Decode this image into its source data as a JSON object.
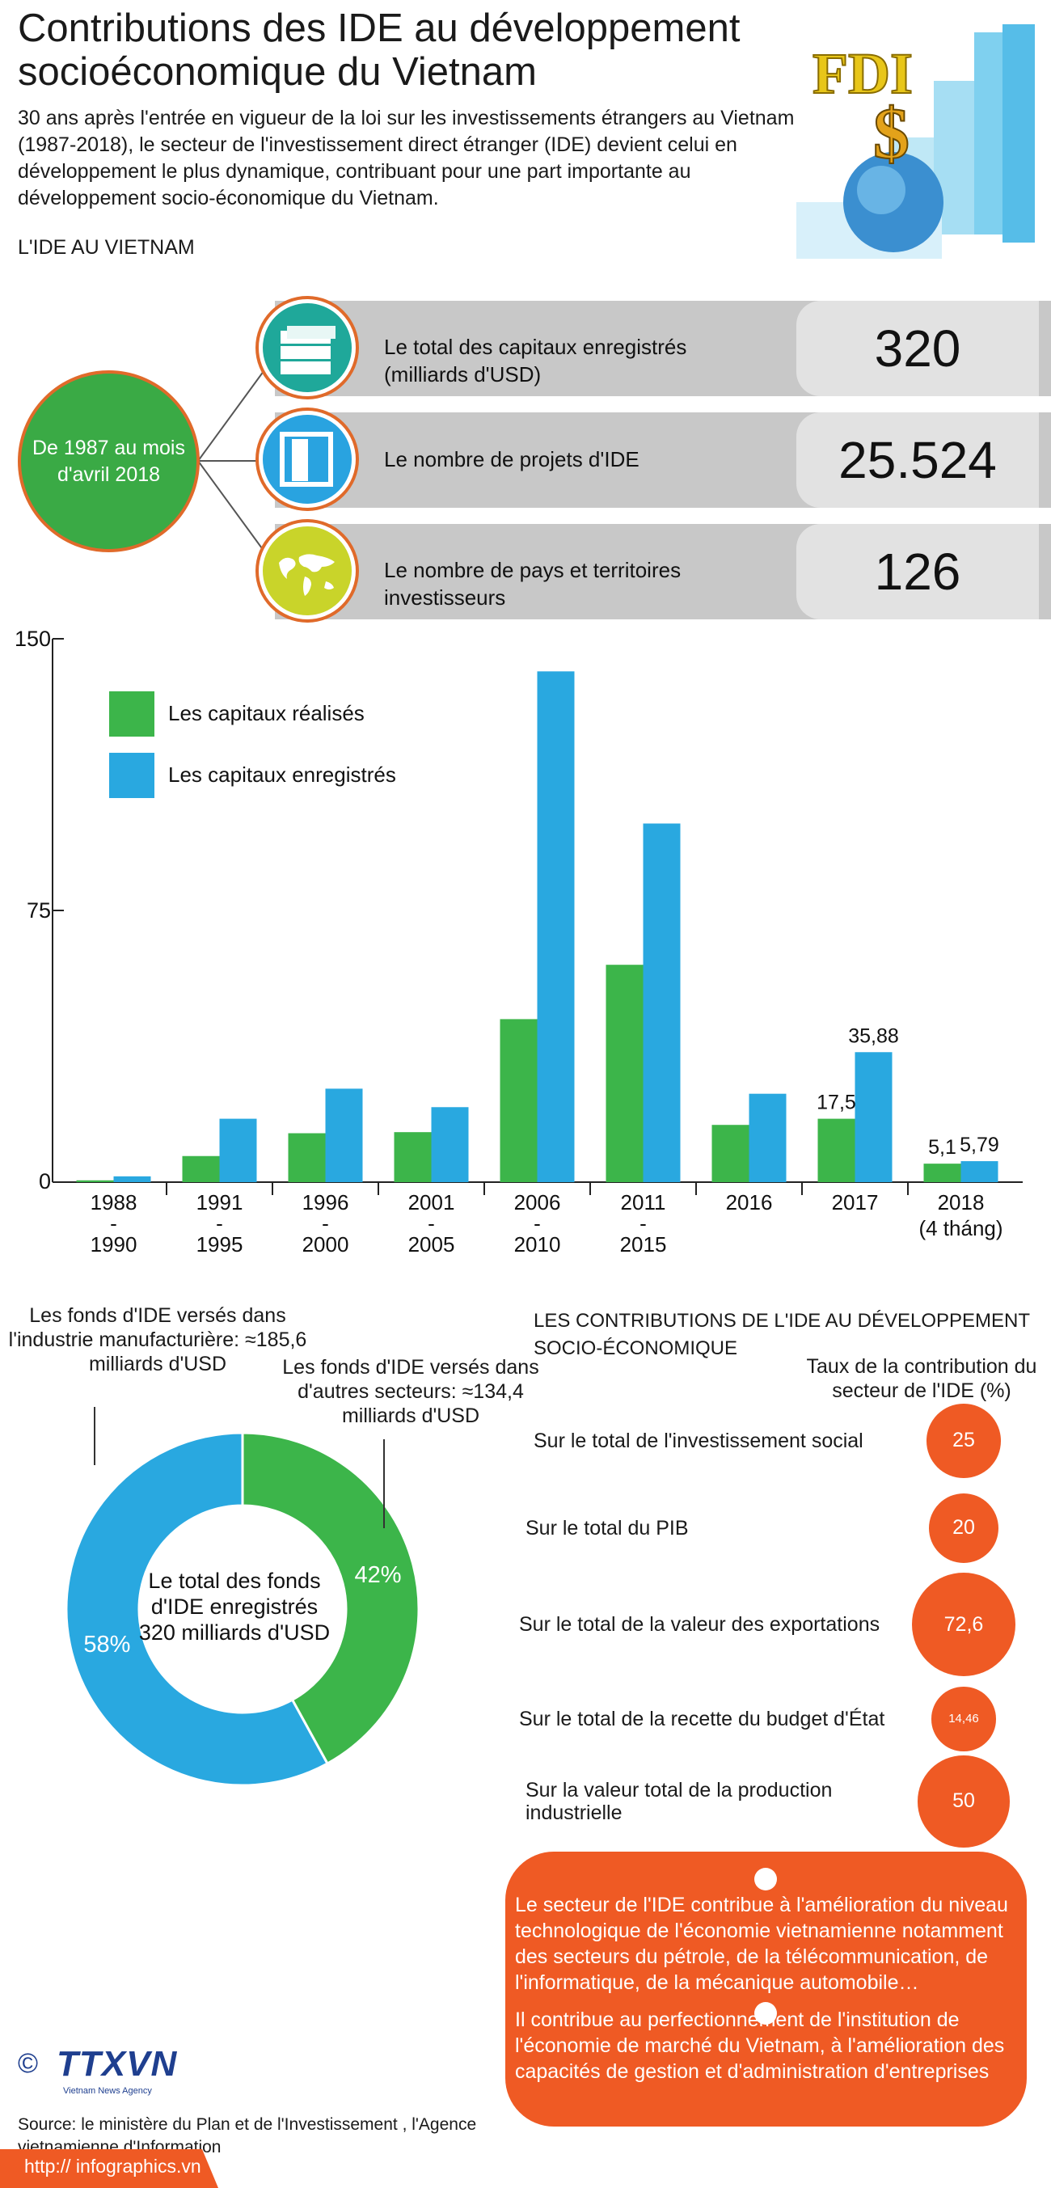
{
  "header": {
    "title": "Contributions des IDE au développement socioéconomique du Vietnam",
    "intro": "30 ans après l'entrée en vigueur de la loi sur les investissements étrangers au Vietnam (1987-2018), le secteur de l'investissement direct étranger (IDE) devient celui en développement le plus dynamique, contribuant pour une part importante au développement socio-économique du Vietnam.",
    "subheading": "L'IDE  AU VIETNAM",
    "logo_text": "FDI",
    "logo_symbol": "$"
  },
  "period": "De 1987 au mois d'avril 2018",
  "stats": [
    {
      "label": "Le total des capitaux enregistrés (milliards d'USD)",
      "value": "320",
      "icon": "money-icon",
      "color": "#1fa89a"
    },
    {
      "label": "Le nombre de projets d'IDE",
      "value": "25.524",
      "icon": "document-icon",
      "color": "#29a3e0"
    },
    {
      "label": "Le nombre de pays et territoires investisseurs",
      "value": "126",
      "icon": "world-map-icon",
      "color": "#c9d42a"
    }
  ],
  "chart_data": [
    {
      "type": "bar",
      "categories": [
        "1988 - 1990",
        "1991 - 1995",
        "1996 - 2000",
        "2001 - 2005",
        "2006 - 2010",
        "2011 - 2015",
        "2016",
        "2017",
        "2018 (4 tháng)"
      ],
      "series": [
        {
          "name": "Les capitaux réalisés",
          "color": "#3cb54a",
          "values": [
            0.5,
            7.2,
            13.5,
            13.8,
            45,
            60,
            15.8,
            17.5,
            5.1
          ]
        },
        {
          "name": "Les capitaux enregistrés",
          "color": "#29a8e0",
          "values": [
            1.6,
            17.5,
            25.8,
            20.7,
            141,
            99,
            24.4,
            35.88,
            5.79
          ]
        }
      ],
      "yticks": [
        "0",
        "75",
        "150"
      ],
      "ylim": [
        0,
        150
      ],
      "data_labels": [
        {
          "series": 0,
          "index": 7,
          "text": "17,5"
        },
        {
          "series": 1,
          "index": 7,
          "text": "35,88"
        },
        {
          "series": 0,
          "index": 8,
          "text": "5,1"
        },
        {
          "series": 1,
          "index": 8,
          "text": "5,79"
        }
      ],
      "legend_position": "top-left"
    },
    {
      "type": "pie",
      "center_label": "Le total des fonds d'IDE enregistrés 320 milliards d'USD",
      "slices": [
        {
          "label": "Les fonds d'IDE versés dans l'industrie manufacturière: ≈185,6 milliards d'USD",
          "value": 58,
          "text": "58%",
          "color": "#29a8e0"
        },
        {
          "label": "Les fonds d'IDE versés dans d'autres secteurs: ≈134,4 milliards d'USD",
          "value": 42,
          "text": "42%",
          "color": "#3cb54a"
        }
      ]
    }
  ],
  "contributions": {
    "title": "LES CONTRIBUTIONS DE L'IDE AU DÉVELOPPEMENT SOCIO-ÉCONOMIQUE",
    "subtitle": "Taux de la contribution du secteur de l'IDE (%)",
    "rows": [
      {
        "label": "Sur le total de l'investissement social",
        "value": 25,
        "text": "25"
      },
      {
        "label": "Sur le total du PIB",
        "value": 20,
        "text": "20"
      },
      {
        "label": "Sur le total de la valeur des exportations",
        "value": 72.6,
        "text": "72,6"
      },
      {
        "label": "Sur le total de la recette du budget d'État",
        "value": 14.46,
        "text": "14,46"
      },
      {
        "label": "Sur la valeur total de la production industrielle",
        "value": 50,
        "text": "50"
      }
    ],
    "notes": [
      "Le secteur de l'IDE contribue à l'amélioration du niveau technologique de l'économie vietnamienne notamment des secteurs du pétrole, de la télécommunication,  de l'informatique, de la mécanique automobile…",
      "Il contribue au perfectionnement de l'institution de l'économie de marché du Vietnam, à l'amélioration des capacités de gestion et d'administration d'entreprises"
    ]
  },
  "footer": {
    "copyright": "©",
    "agency_logo": "TTXVN",
    "agency_tagline": "Vietnam News Agency",
    "source": "Source: le ministère du Plan et de l'Investissement , l'Agence vietnamienne d'Information",
    "url": "http:// infographics.vn"
  },
  "colors": {
    "green": "#3cb54a",
    "blue": "#29a8e0",
    "orange": "#ef5a24",
    "teal": "#1fa89a"
  }
}
